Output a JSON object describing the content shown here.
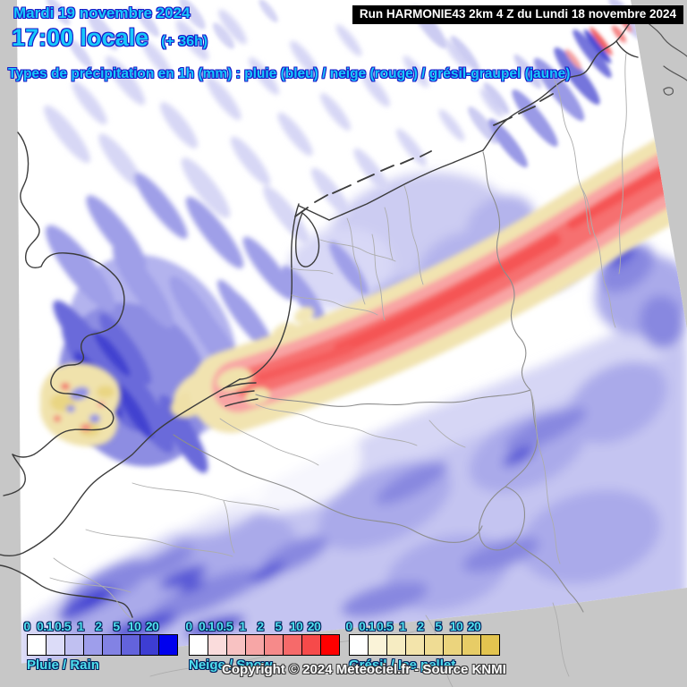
{
  "header": {
    "date": "Mardi 19 novembre 2024",
    "time": "17:00 locale",
    "offset": "(+ 36h)",
    "subtitle": "Types de précipitation en 1h (mm) : pluie (bleu) / neige (rouge) / grésil-graupel (jaune)",
    "run_info": "Run HARMONIE43 2km 4 Z du Lundi 18 novembre 2024"
  },
  "legends": [
    {
      "id": "rain",
      "label": "Pluie / Rain",
      "ticks": [
        "0",
        "0.1",
        "0.5",
        "1",
        "2",
        "5",
        "10",
        "20"
      ],
      "colors": [
        "#ffffff",
        "#dcdcf8",
        "#c0c0f1",
        "#9e9eeb",
        "#8282e4",
        "#6363dc",
        "#3d3dd3",
        "#0000ee"
      ]
    },
    {
      "id": "snow",
      "label": "Neige / Snow",
      "ticks": [
        "0",
        "0.1",
        "0.5",
        "1",
        "2",
        "5",
        "10",
        "20"
      ],
      "colors": [
        "#ffffff",
        "#fadcdc",
        "#f8c2c2",
        "#f7a6a6",
        "#f68a8a",
        "#f66a6a",
        "#f64a4a",
        "#ff0000"
      ]
    },
    {
      "id": "sleet",
      "label": "Grésil / Ice pellet",
      "ticks": [
        "0",
        "0.1",
        "0.5",
        "1",
        "2",
        "5",
        "10",
        "20"
      ],
      "colors": [
        "#ffffff",
        "#faf3d8",
        "#f6ecc2",
        "#f3e4ab",
        "#efdc94",
        "#ebd47d",
        "#e7cc66",
        "#e3c44f"
      ]
    }
  ],
  "footer": {
    "copyright": "Copyright © 2024 Meteociel.fr - Source KNMI"
  },
  "map": {
    "colors": {
      "outside_domain": "#c7c7c7",
      "title_text": "#18c8fa",
      "title_outline": "#1a1ac8",
      "run_box_bg": "#000000",
      "run_box_text": "#ffffff",
      "rain_accent": "#0000ee",
      "snow_accent": "#ff0000",
      "sleet_accent": "#e3c44f"
    }
  }
}
